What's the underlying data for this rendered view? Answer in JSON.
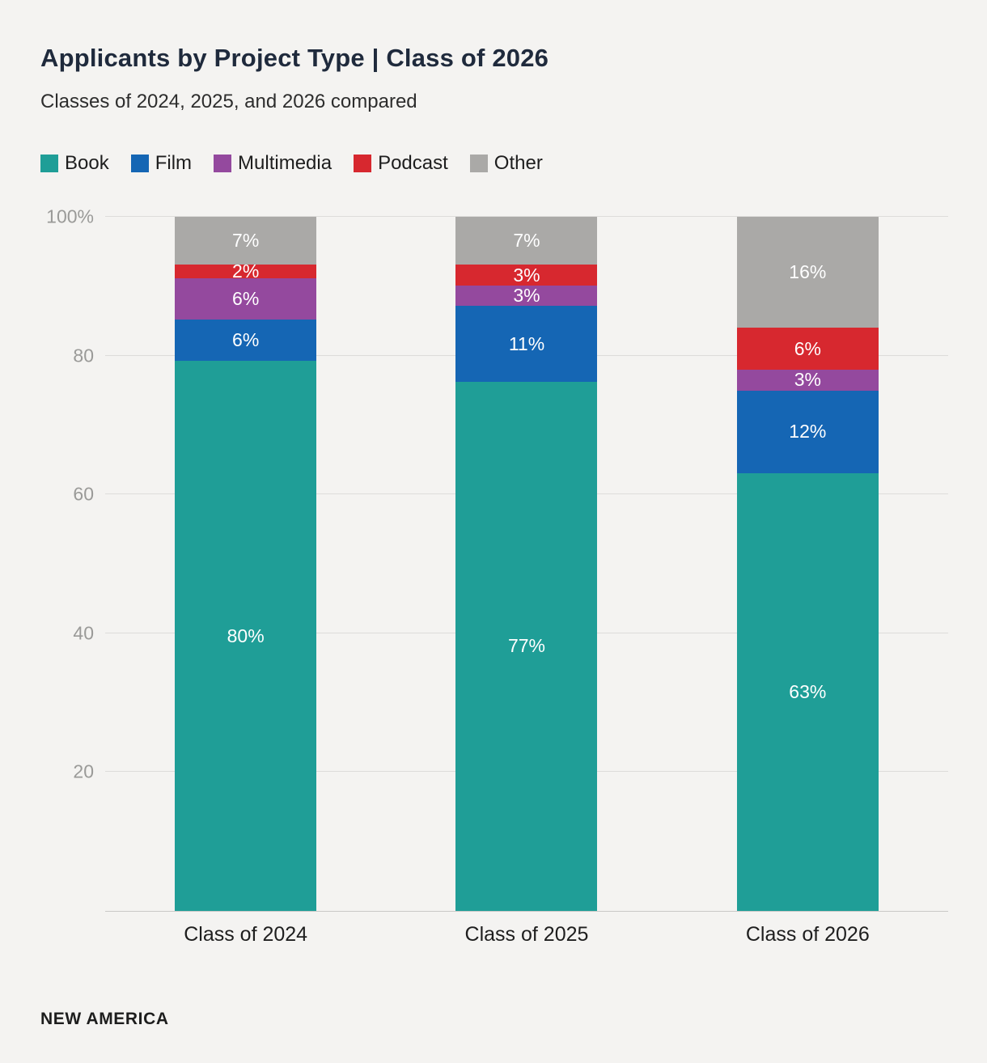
{
  "page": {
    "title": "Applicants by Project Type | Class of 2026",
    "subtitle": "Classes of 2024, 2025, and 2026 compared",
    "source": "NEW AMERICA"
  },
  "colors": {
    "background": "#f4f3f1",
    "grid": "#dddcda",
    "axis_text": "#9a9a98",
    "title_text": "#1f2a3c"
  },
  "chart_data": {
    "type": "bar",
    "stacked": true,
    "percent": true,
    "title": "Applicants by Project Type | Class of 2026",
    "subtitle": "Classes of 2024, 2025, and 2026 compared",
    "categories": [
      "Class of 2024",
      "Class of 2025",
      "Class of 2026"
    ],
    "series": [
      {
        "name": "Book",
        "color": "#1f9e97",
        "values": [
          80,
          77,
          63
        ]
      },
      {
        "name": "Film",
        "color": "#1566b4",
        "values": [
          6,
          11,
          12
        ]
      },
      {
        "name": "Multimedia",
        "color": "#94499e",
        "values": [
          6,
          3,
          3
        ]
      },
      {
        "name": "Podcast",
        "color": "#d7282f",
        "values": [
          2,
          3,
          6
        ]
      },
      {
        "name": "Other",
        "color": "#aaa9a7",
        "values": [
          7,
          7,
          16
        ]
      }
    ],
    "value_suffix": "%",
    "ylim": [
      0,
      100
    ],
    "yticks": [
      20,
      40,
      60,
      80,
      100
    ],
    "ytick_labels": [
      "20",
      "40",
      "60",
      "80",
      "100%"
    ],
    "grid": true,
    "legend_position": "top",
    "legend_entries": [
      "Book",
      "Film",
      "Multimedia",
      "Podcast",
      "Other"
    ]
  }
}
